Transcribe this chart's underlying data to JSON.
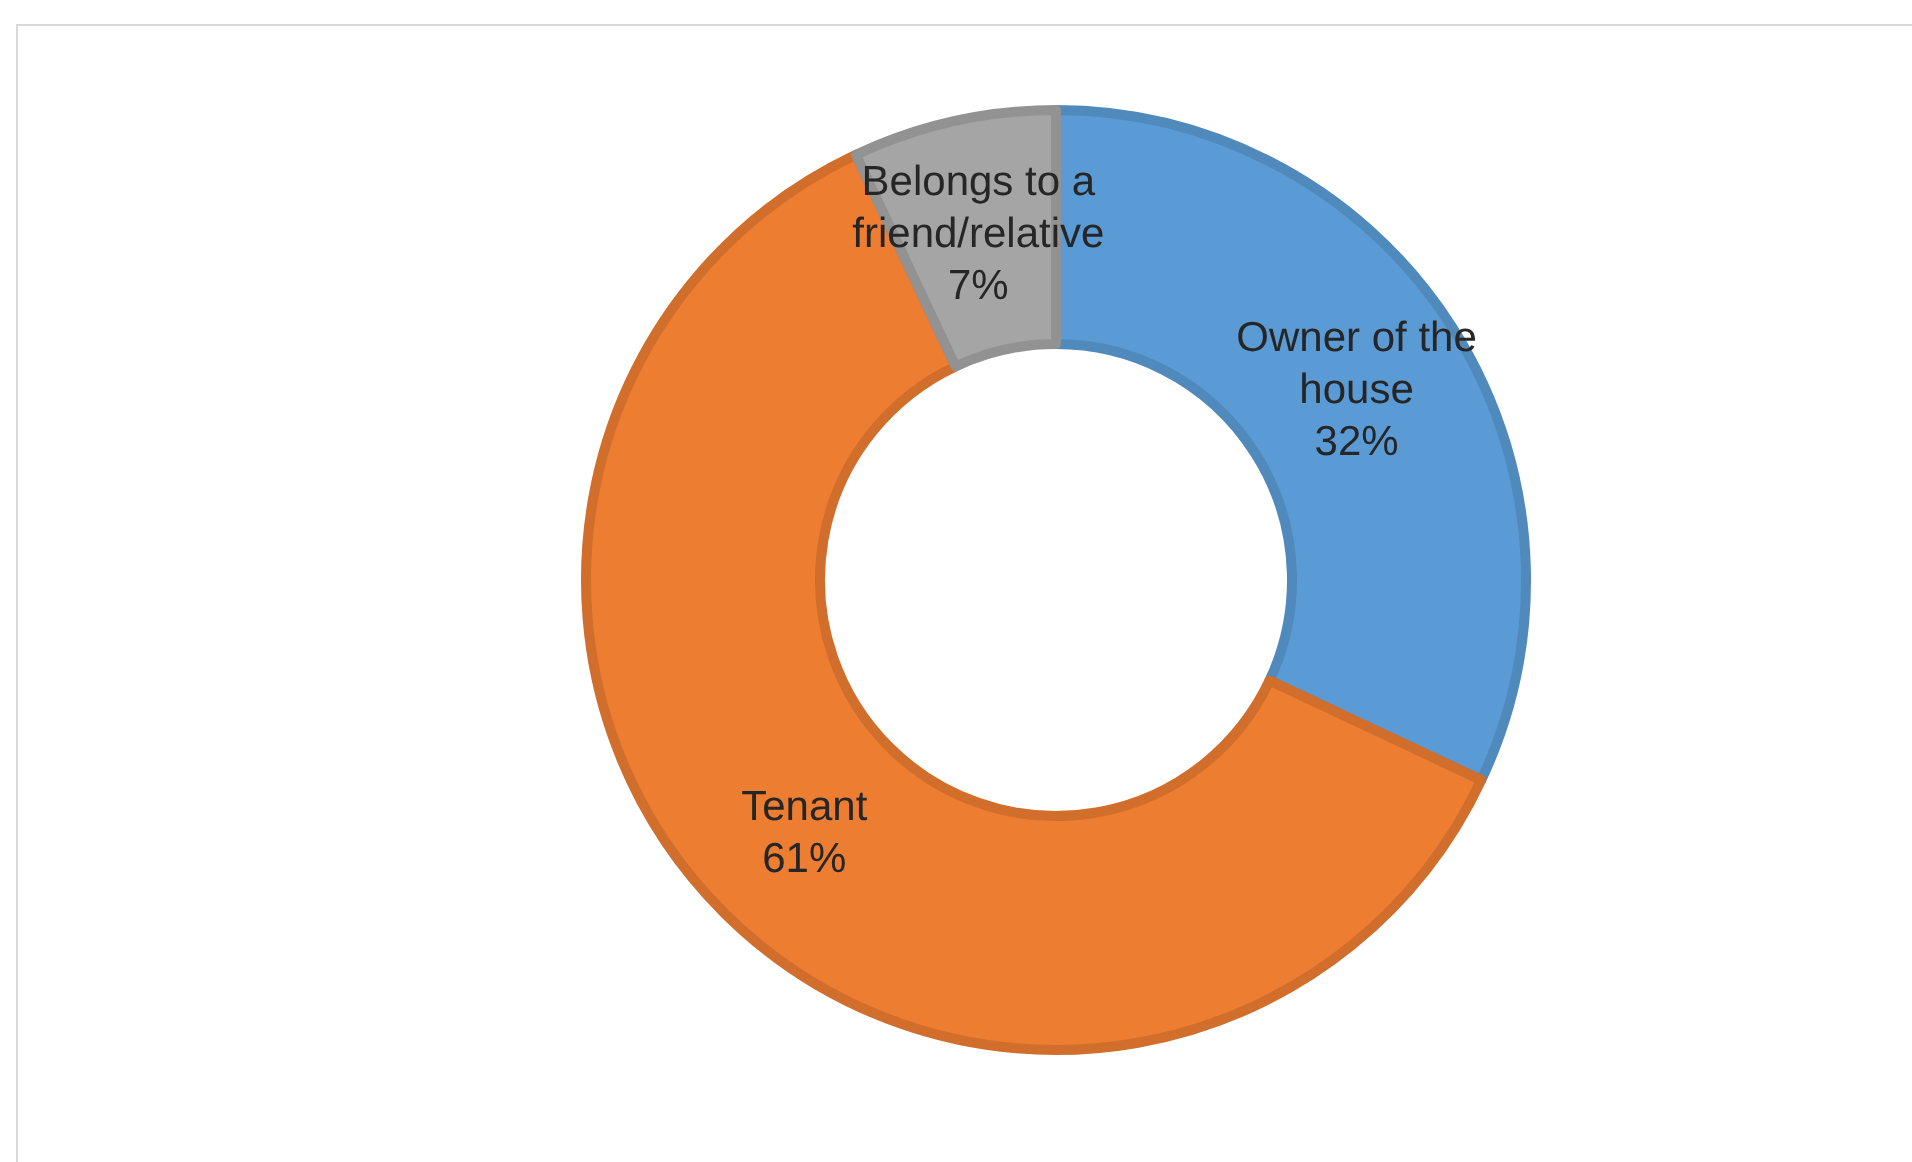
{
  "chart_data": {
    "type": "donut",
    "categories": [
      "Owner of the house",
      "Tenant",
      "Belongs to a friend/relative"
    ],
    "values": [
      32,
      61,
      7
    ],
    "colors": [
      "#5b9bd5",
      "#ed7d31",
      "#a5a5a5"
    ],
    "value_labels": [
      "32%",
      "61%",
      "7%"
    ],
    "legend": false
  }
}
